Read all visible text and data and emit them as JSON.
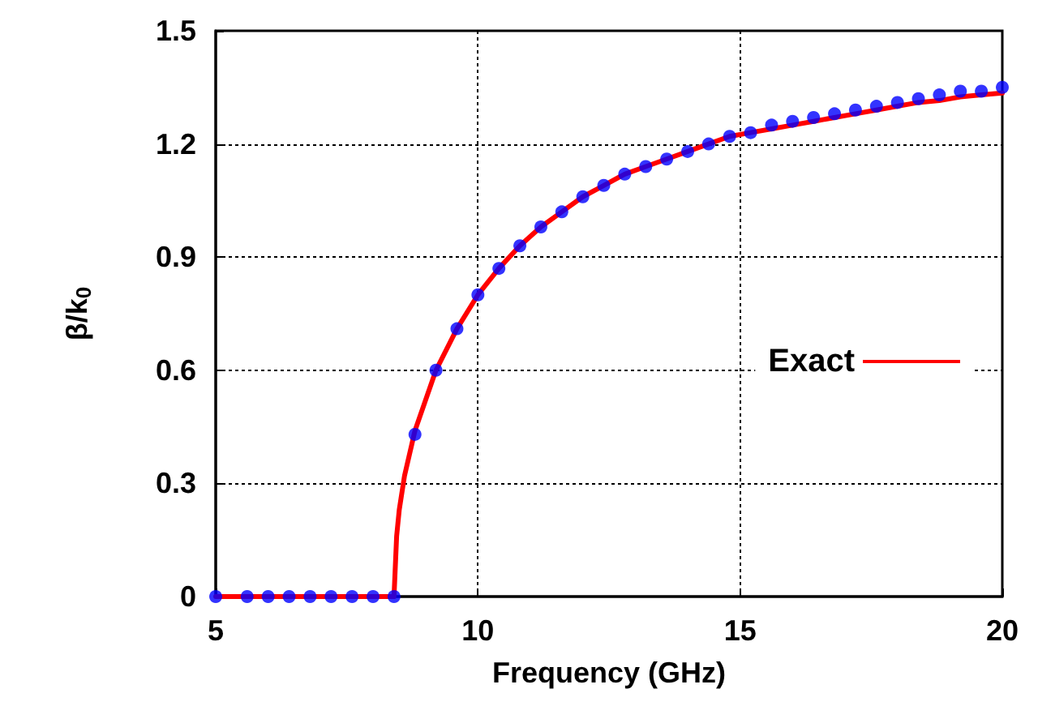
{
  "chart_data": {
    "type": "line",
    "xlabel": "Frequency (GHz)",
    "ylabel": "β/k$_{0}$",
    "xlim": [
      5,
      20
    ],
    "xticks": [
      5,
      10,
      15,
      20
    ],
    "ylim": [
      0,
      1.5
    ],
    "yticks": [
      0,
      0.3,
      0.6,
      0.9,
      1.2,
      1.5
    ],
    "grid": true,
    "legend": "right",
    "series": [
      {
        "name": "Exact",
        "color": "#ff0000",
        "marker": "none",
        "line_style": "solid",
        "x": [
          5,
          8.4,
          8.45,
          8.5,
          8.6,
          8.8,
          9.2,
          9.6,
          10,
          10.4,
          10.8,
          11.2,
          11.6,
          12,
          12.4,
          12.8,
          13.2,
          13.6,
          14,
          14.4,
          14.8,
          15.2,
          15.6,
          16,
          16.4,
          16.8,
          17.2,
          17.6,
          18,
          18.4,
          18.8,
          19.2,
          19.6,
          20
        ],
        "values": [
          0,
          0,
          0.16,
          0.23,
          0.32,
          0.44,
          0.6,
          0.71,
          0.8,
          0.87,
          0.93,
          0.98,
          1.02,
          1.06,
          1.09,
          1.12,
          1.14,
          1.16,
          1.18,
          1.2,
          1.22,
          1.23,
          1.24,
          1.25,
          1.26,
          1.27,
          1.28,
          1.29,
          1.3,
          1.31,
          1.315,
          1.325,
          1.33,
          1.335
        ]
      },
      {
        "type": "scatter",
        "color": "#0000ff",
        "marker": "circle",
        "x": [
          5,
          5.6,
          6,
          6.4,
          6.8,
          7.2,
          7.6,
          8,
          8.4,
          8.8,
          9.2,
          9.6,
          10,
          10.4,
          10.8,
          11.2,
          11.6,
          12,
          12.4,
          12.8,
          13.2,
          13.6,
          14,
          14.4,
          14.8,
          15.2,
          15.6,
          16,
          16.4,
          16.8,
          17.2,
          17.6,
          18,
          18.4,
          18.8,
          19.2,
          19.6,
          20
        ],
        "values": [
          0,
          0,
          0,
          0,
          0,
          0,
          0,
          0,
          0,
          0.43,
          0.6,
          0.71,
          0.8,
          0.87,
          0.93,
          0.98,
          1.02,
          1.06,
          1.09,
          1.12,
          1.14,
          1.16,
          1.18,
          1.2,
          1.22,
          1.23,
          1.25,
          1.26,
          1.27,
          1.28,
          1.29,
          1.3,
          1.31,
          1.32,
          1.33,
          1.34,
          1.34,
          1.35
        ]
      }
    ]
  }
}
